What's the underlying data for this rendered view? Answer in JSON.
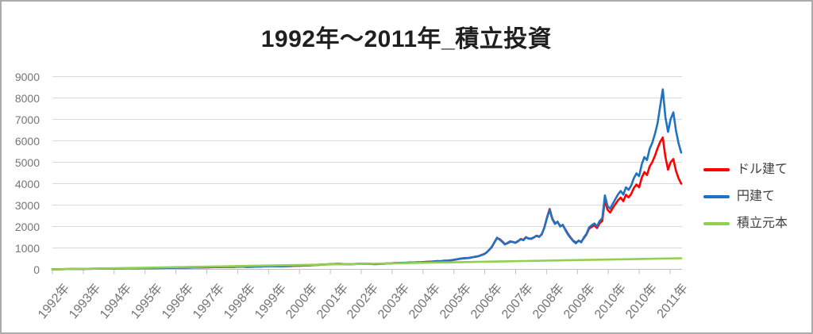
{
  "title": "1992年～2011年_積立投資",
  "colors": {
    "dollar": "#ff0000",
    "yen": "#1e73c3",
    "principal": "#92d050",
    "grid": "#d9d9d9",
    "axis": "#bfbfbf",
    "tick_label": "#757575",
    "legend_text": "#404040",
    "title_text": "#1f1f1f",
    "border": "#ababab"
  },
  "chart_data": {
    "type": "line",
    "title": "1992年～2011年_積立投資",
    "xlabel": "",
    "ylabel": "",
    "ylim": [
      0,
      9000
    ],
    "y_ticks": [
      0,
      1000,
      2000,
      3000,
      4000,
      5000,
      6000,
      7000,
      8000,
      9000
    ],
    "x_tick_labels": [
      "1992年",
      "1993年",
      "1994年",
      "1995年",
      "1996年",
      "1997年",
      "1998年",
      "1999年",
      "2000年",
      "2001年",
      "2002年",
      "2003年",
      "2004年",
      "2005年",
      "2006年",
      "2007年",
      "2008年",
      "2009年",
      "2010年",
      "2010年",
      "2011年"
    ],
    "grid": "horizontal",
    "legend_position": "right-middle",
    "series": [
      {
        "key": "dollar",
        "name": "ドル建て",
        "color": "#ff0000",
        "values": [
          3,
          4,
          5,
          7,
          8,
          10,
          11,
          13,
          14,
          16,
          18,
          20,
          23,
          25,
          26,
          27,
          29,
          30,
          31,
          33,
          34,
          35,
          37,
          39,
          41,
          43,
          44,
          45,
          47,
          48,
          49,
          51,
          52,
          53,
          55,
          56,
          58,
          57,
          60,
          60,
          62,
          64,
          63,
          66,
          68,
          67,
          70,
          73,
          75,
          77,
          79,
          79,
          82,
          85,
          84,
          88,
          87,
          90,
          93,
          96,
          99,
          101,
          104,
          104,
          107,
          110,
          110,
          113,
          116,
          116,
          120,
          123,
          125,
          120,
          115,
          117,
          121,
          126,
          131,
          132,
          136,
          141,
          145,
          148,
          147,
          141,
          142,
          139,
          145,
          151,
          151,
          157,
          162,
          167,
          171,
          173,
          180,
          182,
          189,
          196,
          202,
          209,
          215,
          221,
          228,
          234,
          240,
          246,
          250,
          253,
          248,
          241,
          242,
          246,
          244,
          248,
          251,
          254,
          257,
          256,
          259,
          253,
          247,
          250,
          255,
          261,
          267,
          273,
          279,
          285,
          291,
          298,
          305,
          304,
          308,
          308,
          321,
          318,
          326,
          326,
          331,
          340,
          347,
          356,
          364,
          366,
          384,
          380,
          386,
          406,
          402,
          419,
          430,
          450,
          470,
          495,
          508,
          524,
          530,
          542,
          575,
          588,
          612,
          668,
          705,
          780,
          910,
          1030,
          1270,
          1450,
          1410,
          1300,
          1180,
          1220,
          1290,
          1285,
          1235,
          1310,
          1420,
          1375,
          1505,
          1430,
          1440,
          1480,
          1575,
          1525,
          1630,
          1970,
          2430,
          2820,
          2380,
          2150,
          2200,
          2030,
          2050,
          1860,
          1650,
          1480,
          1330,
          1260,
          1320,
          1290,
          1460,
          1630,
          1900,
          1980,
          2050,
          1930,
          2150,
          2260,
          3230,
          2780,
          2650,
          2860,
          3050,
          3230,
          3350,
          3180,
          3480,
          3360,
          3520,
          3800,
          3960,
          3830,
          4280,
          4540,
          4400,
          4800,
          5000,
          5300,
          5650,
          5950,
          6150,
          5250,
          4650,
          5000,
          5150,
          4600,
          4250,
          4000
        ]
      },
      {
        "key": "yen",
        "name": "円建て",
        "color": "#1e73c3",
        "values": [
          3,
          4,
          6,
          7,
          9,
          10,
          12,
          13,
          15,
          17,
          19,
          21,
          24,
          26,
          25,
          28,
          30,
          29,
          32,
          34,
          33,
          36,
          38,
          40,
          42,
          44,
          43,
          46,
          48,
          47,
          50,
          52,
          51,
          54,
          56,
          55,
          57,
          59,
          58,
          61,
          63,
          62,
          65,
          67,
          66,
          69,
          72,
          74,
          76,
          78,
          77,
          81,
          84,
          83,
          86,
          89,
          88,
          92,
          95,
          98,
          100,
          103,
          102,
          106,
          109,
          108,
          112,
          115,
          114,
          118,
          122,
          125,
          127,
          122,
          118,
          115,
          119,
          124,
          129,
          134,
          138,
          143,
          148,
          146,
          150,
          144,
          139,
          137,
          142,
          148,
          154,
          160,
          165,
          170,
          174,
          176,
          178,
          185,
          192,
          199,
          206,
          212,
          218,
          225,
          232,
          238,
          244,
          250,
          254,
          257,
          252,
          245,
          239,
          243,
          248,
          252,
          255,
          258,
          254,
          260,
          263,
          257,
          250,
          246,
          252,
          258,
          264,
          270,
          276,
          282,
          288,
          295,
          301,
          308,
          304,
          312,
          318,
          315,
          322,
          330,
          327,
          336,
          344,
          352,
          360,
          370,
          380,
          376,
          390,
          402,
          398,
          415,
          435,
          455,
          478,
          502,
          515,
          530,
          525,
          548,
          570,
          595,
          620,
          660,
          715,
          790,
          900,
          1050,
          1250,
          1480,
          1390,
          1280,
          1160,
          1240,
          1310,
          1270,
          1250,
          1330,
          1400,
          1360,
          1490,
          1450,
          1420,
          1500,
          1560,
          1510,
          1650,
          1950,
          2400,
          2780,
          2350,
          2120,
          2230,
          2000,
          2080,
          1830,
          1620,
          1460,
          1310,
          1210,
          1350,
          1260,
          1490,
          1660,
          1960,
          2060,
          2140,
          2010,
          2260,
          2390,
          3450,
          2960,
          2830,
          3060,
          3290,
          3500,
          3660,
          3490,
          3830,
          3710,
          3910,
          4260,
          4480,
          4350,
          4900,
          5240,
          5100,
          5620,
          5900,
          6320,
          6810,
          7620,
          8400,
          7100,
          6420,
          7010,
          7330,
          6480,
          5880,
          5450
        ]
      },
      {
        "key": "principal",
        "name": "積立元本",
        "color": "#92d050",
        "values": [
          0,
          26,
          52,
          78,
          104,
          130,
          156,
          182,
          208,
          234,
          260,
          286,
          312,
          338,
          364,
          390,
          416,
          442,
          468,
          494,
          520
        ]
      }
    ]
  },
  "legend": {
    "items": [
      {
        "key": "dollar",
        "label": "ドル建て",
        "color": "#ff0000"
      },
      {
        "key": "yen",
        "label": "円建て",
        "color": "#1e73c3"
      },
      {
        "key": "principal",
        "label": "積立元本",
        "color": "#92d050"
      }
    ]
  }
}
